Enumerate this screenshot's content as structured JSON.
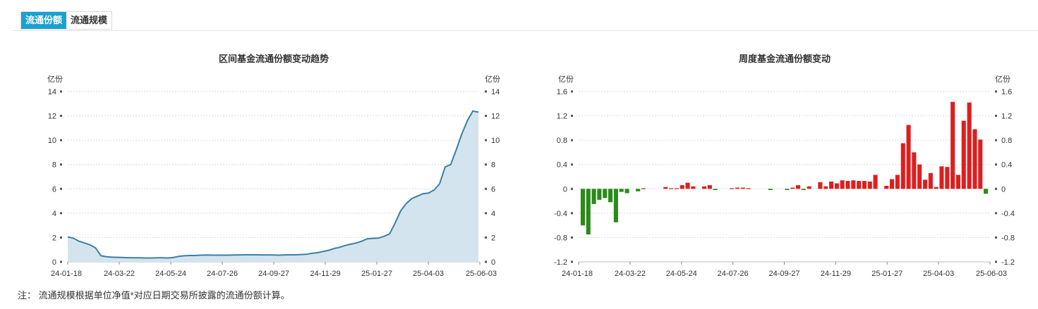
{
  "tabs": [
    {
      "label": "流通份额",
      "active": true
    },
    {
      "label": "流通规模",
      "active": false
    }
  ],
  "note": "注：  流通规模根据单位净值*对应日期交易所披露的流通份额计算。",
  "colors": {
    "line": "#3a7fa8",
    "area": "#d4e4ee",
    "up": "#dd1f1f",
    "down": "#2a8a1a",
    "tab_active": "#1aa1d0"
  },
  "chart_data": [
    {
      "type": "area",
      "title": "区间基金流通份额变动趋势",
      "unit_left": "亿份",
      "unit_right": "亿份",
      "ylim": [
        0,
        14
      ],
      "yticks": [
        "0",
        "2",
        "4",
        "6",
        "8",
        "10",
        "12",
        "14"
      ],
      "xticks": [
        "24-01-18",
        "24-03-22",
        "24-05-24",
        "24-07-26",
        "24-09-27",
        "24-11-29",
        "25-01-27",
        "25-04-03",
        "25-06-03"
      ],
      "grid": true,
      "values": [
        2.05,
        1.95,
        1.7,
        1.55,
        1.4,
        1.15,
        0.5,
        0.42,
        0.38,
        0.37,
        0.35,
        0.34,
        0.33,
        0.33,
        0.32,
        0.32,
        0.33,
        0.33,
        0.32,
        0.35,
        0.45,
        0.5,
        0.52,
        0.52,
        0.55,
        0.56,
        0.55,
        0.55,
        0.55,
        0.55,
        0.56,
        0.57,
        0.58,
        0.58,
        0.58,
        0.57,
        0.57,
        0.56,
        0.55,
        0.57,
        0.58,
        0.58,
        0.6,
        0.62,
        0.7,
        0.75,
        0.85,
        0.95,
        1.1,
        1.2,
        1.35,
        1.45,
        1.55,
        1.7,
        1.9,
        1.93,
        1.95,
        2.1,
        2.3,
        3.2,
        4.2,
        4.8,
        5.2,
        5.4,
        5.6,
        5.65,
        5.9,
        6.4,
        7.8,
        8.0,
        9.2,
        10.5,
        11.6,
        12.4,
        12.3
      ]
    },
    {
      "type": "bar",
      "title": "周度基金流通份额变动",
      "unit_left": "亿份",
      "unit_right": "亿份",
      "ylim": [
        -1.2,
        1.6
      ],
      "yticks": [
        "-1.2",
        "-0.8",
        "-0.4",
        "0",
        "0.4",
        "0.8",
        "1.2",
        "1.6"
      ],
      "xticks": [
        "24-01-18",
        "24-03-22",
        "24-05-24",
        "24-07-26",
        "24-09-27",
        "24-11-29",
        "25-01-27",
        "25-04-03",
        "25-06-03"
      ],
      "grid": true,
      "values": [
        -0.6,
        -0.75,
        -0.25,
        -0.18,
        -0.15,
        -0.22,
        -0.55,
        -0.05,
        -0.07,
        0.0,
        -0.04,
        0.01,
        0.0,
        0.0,
        0.0,
        0.03,
        0.01,
        0.01,
        0.06,
        0.1,
        0.04,
        0.0,
        0.04,
        0.06,
        -0.02,
        0.0,
        0.0,
        0.01,
        0.02,
        0.02,
        0.01,
        0.0,
        0.0,
        0.0,
        -0.02,
        0.0,
        0.0,
        -0.02,
        0.02,
        0.06,
        -0.02,
        0.04,
        0.0,
        0.11,
        0.04,
        0.12,
        0.09,
        0.14,
        0.13,
        0.14,
        0.13,
        0.13,
        0.12,
        0.23,
        0.0,
        0.05,
        0.16,
        0.23,
        0.75,
        1.05,
        0.6,
        0.4,
        0.15,
        0.26,
        0.03,
        0.37,
        0.36,
        1.43,
        0.23,
        1.12,
        1.42,
        0.98,
        0.81,
        -0.08
      ]
    }
  ]
}
